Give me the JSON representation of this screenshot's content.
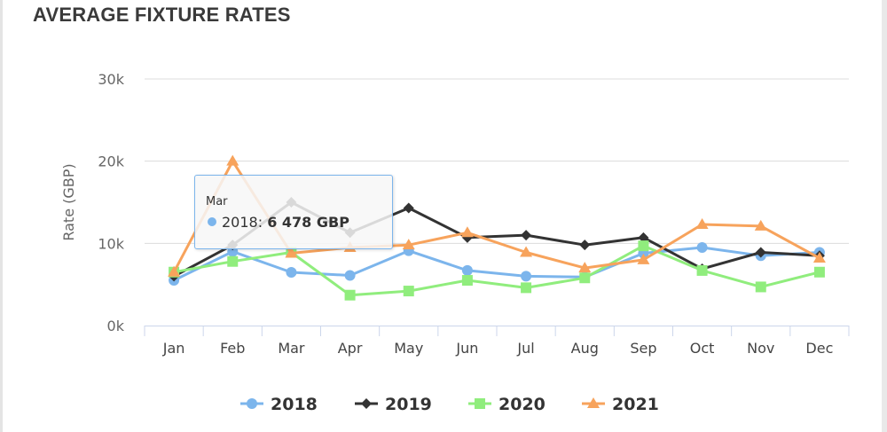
{
  "title": "AVERAGE FIXTURE RATES",
  "tooltip": {
    "header": "Mar",
    "series_label": "2018:",
    "value_text": "6 478 GBP",
    "color": "#7cb5ec"
  },
  "chart_data": {
    "type": "line",
    "title": "AVERAGE FIXTURE RATES",
    "xlabel": "",
    "ylabel": "Rate (GBP)",
    "ylim": [
      0,
      30000
    ],
    "yticks": [
      0,
      10000,
      20000,
      30000
    ],
    "ytick_labels": [
      "0k",
      "10k",
      "20k",
      "30k"
    ],
    "categories": [
      "Jan",
      "Feb",
      "Mar",
      "Apr",
      "May",
      "Jun",
      "Jul",
      "Aug",
      "Sep",
      "Oct",
      "Nov",
      "Dec"
    ],
    "legend_position": "bottom-center",
    "series": [
      {
        "name": "2018",
        "color": "#7cb5ec",
        "marker": "circle",
        "values": [
          5500,
          9000,
          6478,
          6100,
          9100,
          6700,
          6000,
          5900,
          8800,
          9500,
          8500,
          8900
        ]
      },
      {
        "name": "2019",
        "color": "#333333",
        "marker": "diamond",
        "values": [
          6000,
          9800,
          15000,
          11300,
          14300,
          10700,
          11000,
          9800,
          10700,
          6900,
          8900,
          8500
        ]
      },
      {
        "name": "2020",
        "color": "#90ed7d",
        "marker": "square",
        "values": [
          6500,
          7800,
          8900,
          3700,
          4200,
          5500,
          4600,
          5800,
          9700,
          6700,
          4700,
          6500
        ]
      },
      {
        "name": "2021",
        "color": "#f7a35c",
        "marker": "triangle",
        "values": [
          6500,
          20000,
          8800,
          9500,
          9800,
          11300,
          8900,
          7000,
          8000,
          12300,
          12100,
          8200
        ]
      }
    ]
  }
}
